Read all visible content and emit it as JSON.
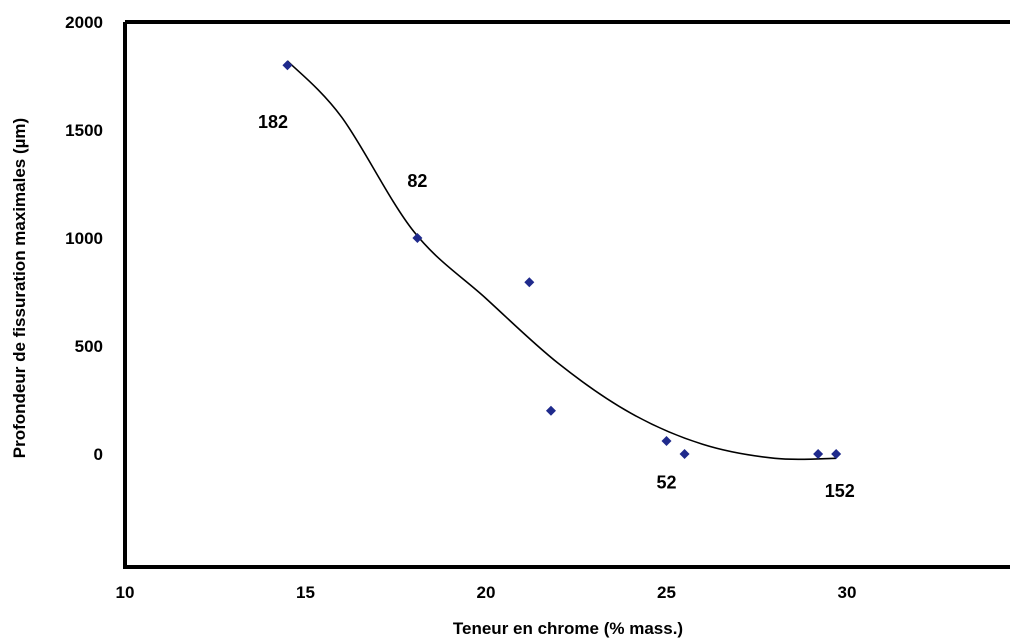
{
  "chart_data": {
    "type": "scatter",
    "title": "",
    "xlabel": "Teneur en chrome (% mass.)",
    "ylabel": "Profondeur de fissuration maximales (µm)",
    "xlim": [
      10,
      35
    ],
    "ylim": [
      -500,
      2000
    ],
    "x_ticks": [
      "10",
      "15",
      "20",
      "25",
      "30"
    ],
    "y_ticks": [
      "2000",
      "1500",
      "1000",
      "500",
      "0"
    ],
    "grid": false,
    "legend": "none",
    "marker_color": "#1f2a8c",
    "series": [
      {
        "points": [
          {
            "x": 14.5,
            "y": 1800
          },
          {
            "x": 18.1,
            "y": 1000
          },
          {
            "x": 21.2,
            "y": 795
          },
          {
            "x": 21.8,
            "y": 200
          },
          {
            "x": 25.0,
            "y": 60
          },
          {
            "x": 25.5,
            "y": 0
          },
          {
            "x": 29.2,
            "y": 0
          },
          {
            "x": 29.7,
            "y": 0
          }
        ]
      }
    ],
    "trendline": {
      "type": "polynomial",
      "x_range": [
        14.5,
        29.7
      ],
      "points": [
        {
          "x": 14.5,
          "y": 1820
        },
        {
          "x": 16,
          "y": 1560
        },
        {
          "x": 18,
          "y": 1030
        },
        {
          "x": 20,
          "y": 720
        },
        {
          "x": 22,
          "y": 420
        },
        {
          "x": 24,
          "y": 190
        },
        {
          "x": 26,
          "y": 45
        },
        {
          "x": 28,
          "y": -20
        },
        {
          "x": 29.7,
          "y": -20
        }
      ]
    },
    "annotations": [
      {
        "text": "182",
        "x": 14.1,
        "y": 1510
      },
      {
        "text": "82",
        "x": 18.1,
        "y": 1235
      },
      {
        "text": "52",
        "x": 25.0,
        "y": -160
      },
      {
        "text": "152",
        "x": 29.8,
        "y": -200
      }
    ]
  }
}
